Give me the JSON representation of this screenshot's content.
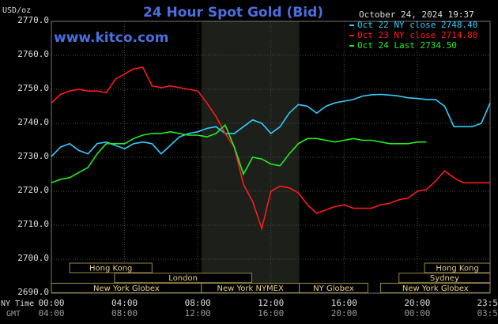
{
  "chart_data": {
    "type": "line",
    "title": "24 Hour Spot Gold (Bid)",
    "timestamp": "October 24, 2024 19:37",
    "source": "www.kitco.com",
    "ylabel": "USD/oz",
    "xlabel": "NY Time",
    "x2label": "GMT",
    "x": [
      0,
      0.5,
      1,
      1.5,
      2,
      2.5,
      3,
      3.5,
      4,
      4.5,
      5,
      5.5,
      6,
      6.5,
      7,
      7.5,
      8,
      8.5,
      9,
      9.5,
      10,
      10.5,
      11,
      11.5,
      12,
      12.5,
      13,
      13.5,
      14,
      14.5,
      15,
      15.5,
      16,
      16.5,
      17,
      17.5,
      18,
      18.5,
      19,
      19.5,
      20,
      20.5,
      21,
      21.5,
      22,
      22.5,
      23,
      23.5,
      23.98
    ],
    "xlim": [
      0,
      23.98
    ],
    "xticks": [
      {
        "value": 0,
        "label": "00:00"
      },
      {
        "value": 4,
        "label": "04:00"
      },
      {
        "value": 8,
        "label": "08:00"
      },
      {
        "value": 12,
        "label": "12:00"
      },
      {
        "value": 16,
        "label": "16:00"
      },
      {
        "value": 20,
        "label": "20:00"
      },
      {
        "value": 23.98,
        "label": "23:59"
      }
    ],
    "x2ticklabels": [
      "04:00",
      "08:00",
      "12:00",
      "16:00",
      "20:00",
      "00:00",
      "03:59"
    ],
    "ylim": [
      2690,
      2770
    ],
    "yticks": [
      {
        "value": 2690,
        "label": "2690.0"
      },
      {
        "value": 2700,
        "label": "2700.0"
      },
      {
        "value": 2710,
        "label": "2710.0"
      },
      {
        "value": 2720,
        "label": "2720.0"
      },
      {
        "value": 2730,
        "label": "2730.0"
      },
      {
        "value": 2740,
        "label": "2740.0"
      },
      {
        "value": 2750,
        "label": "2750.0"
      },
      {
        "value": 2760,
        "label": "2760.0"
      },
      {
        "value": 2770,
        "label": "2770.0"
      }
    ],
    "grid": true,
    "series": [
      {
        "name": "Oct 22 NY close 2748.40",
        "color": "#33ccff",
        "values": [
          2730.2,
          2733,
          2734,
          2732,
          2731,
          2734,
          2734.5,
          2733.5,
          2732.5,
          2734,
          2734.5,
          2734,
          2731,
          2733.5,
          2736,
          2737,
          2737.5,
          2738.5,
          2739,
          2737,
          2737,
          2739,
          2741,
          2740,
          2737,
          2739,
          2743,
          2745.5,
          2745,
          2743,
          2745,
          2746,
          2746.5,
          2747,
          2748,
          2748.4,
          2748.5,
          2748.3,
          2748,
          2747.5,
          2747.3,
          2747,
          2747,
          2745,
          2739,
          2739,
          2739,
          2740,
          2746
        ]
      },
      {
        "name": "Oct 23 NY close 2714.80",
        "color": "#ff1a1a",
        "values": [
          2746,
          2748.5,
          2749.5,
          2750,
          2749.5,
          2749.5,
          2749,
          2753,
          2754.5,
          2756,
          2756.5,
          2751,
          2750.5,
          2751,
          2750.5,
          2750,
          2749.5,
          2746,
          2742,
          2737,
          2733,
          2722,
          2717,
          2709,
          2720,
          2721.5,
          2721,
          2719.5,
          2716,
          2713.5,
          2714.5,
          2715.5,
          2716,
          2715,
          2715,
          2715,
          2716,
          2716.5,
          2717.5,
          2718,
          2720,
          2720.5,
          2723,
          2726,
          2724,
          2722.5,
          2722.5,
          2722.5,
          2722.5
        ]
      },
      {
        "name": "Oct 24 Last 2734.50",
        "color": "#22ee22",
        "values": [
          2722.5,
          2723.5,
          2724,
          2725.5,
          2727,
          2731,
          2734,
          2734,
          2734,
          2735.5,
          2736.5,
          2737,
          2737,
          2737.5,
          2737,
          2736.5,
          2736.5,
          2736,
          2737,
          2739.5,
          2733,
          2725,
          2730,
          2729.5,
          2728,
          2727.5,
          2731,
          2734,
          2735.5,
          2735.5,
          2735,
          2734.5,
          2735,
          2735.5,
          2735,
          2735,
          2734.5,
          2734,
          2734,
          2734,
          2734.5,
          2734.5,
          null,
          null,
          null,
          null,
          null,
          null,
          null
        ]
      }
    ],
    "sessions": [
      {
        "label": "Hong Kong",
        "row": 0,
        "start": 1,
        "end": 5.5
      },
      {
        "label": "Hong Kong",
        "row": 0,
        "start": 20.4,
        "end": 23.98
      },
      {
        "label": "London",
        "row": 1,
        "start": 3.45,
        "end": 10.95
      },
      {
        "label": "Sydney",
        "row": 1,
        "start": 19,
        "end": 23.98
      },
      {
        "label": "New York Globex",
        "row": 2,
        "start": 0,
        "end": 8.2
      },
      {
        "label": "New York NYMEX",
        "row": 2,
        "start": 8.2,
        "end": 13.55,
        "highlight": true
      },
      {
        "label": "NY Globex",
        "row": 2,
        "start": 13.55,
        "end": 17.3
      },
      {
        "label": "New York Globex",
        "row": 2,
        "start": 18,
        "end": 23.98
      }
    ]
  }
}
